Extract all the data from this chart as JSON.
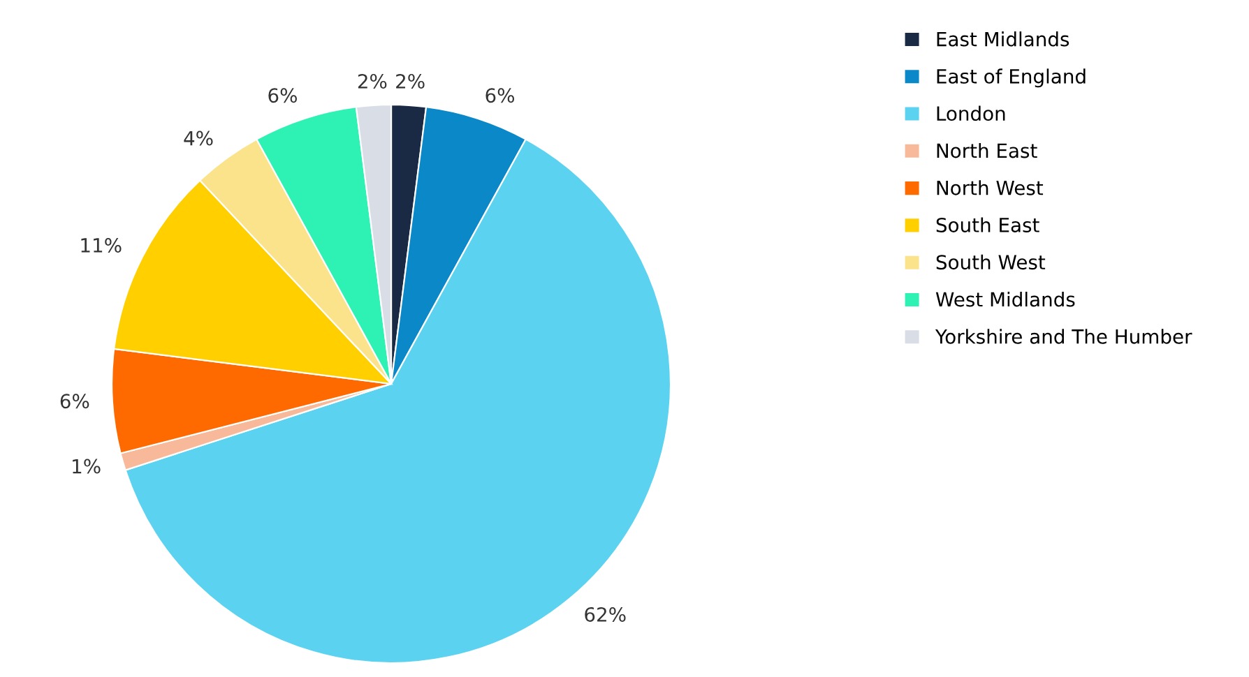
{
  "chart_data": {
    "type": "pie",
    "categories": [
      "East Midlands",
      "East of England",
      "London",
      "North East",
      "North West",
      "South East",
      "South West",
      "West Midlands",
      "Yorkshire and The Humber"
    ],
    "values": [
      2,
      6,
      62,
      1,
      6,
      11,
      4,
      6,
      2
    ],
    "colors": [
      "#1b2a44",
      "#0a88c8",
      "#5bd3f0",
      "#f8b99a",
      "#ff6a00",
      "#ffcf00",
      "#fbe38c",
      "#2ef2b3",
      "#d9dde6"
    ],
    "value_labels": [
      "2%",
      "6%",
      "62%",
      "1%",
      "6%",
      "11%",
      "4%",
      "6%",
      "2%"
    ],
    "legend": "right"
  }
}
